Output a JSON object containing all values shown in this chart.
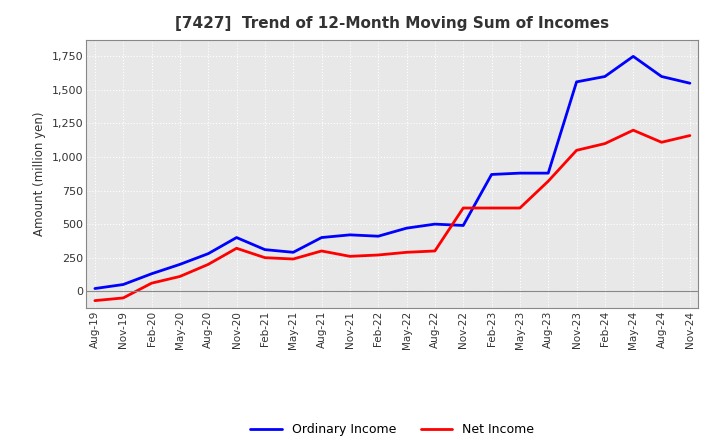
{
  "title": "[7427]  Trend of 12-Month Moving Sum of Incomes",
  "ylabel": "Amount (million yen)",
  "x_labels": [
    "Aug-19",
    "Nov-19",
    "Feb-20",
    "May-20",
    "Aug-20",
    "Nov-20",
    "Feb-21",
    "May-21",
    "Aug-21",
    "Nov-21",
    "Feb-22",
    "May-22",
    "Aug-22",
    "Nov-22",
    "Feb-23",
    "May-23",
    "Aug-23",
    "Nov-23",
    "Feb-24",
    "May-24",
    "Aug-24",
    "Nov-24"
  ],
  "ordinary_income": [
    20,
    50,
    130,
    200,
    280,
    400,
    310,
    290,
    400,
    420,
    410,
    470,
    500,
    490,
    870,
    880,
    880,
    1560,
    1600,
    1750,
    1600,
    1550
  ],
  "net_income": [
    -70,
    -50,
    60,
    110,
    200,
    320,
    250,
    240,
    300,
    260,
    270,
    290,
    300,
    620,
    620,
    620,
    820,
    1050,
    1100,
    1200,
    1110,
    1160
  ],
  "ordinary_color": "#0000ff",
  "net_color": "#ff0000",
  "background_color": "#ffffff",
  "plot_bg_color": "#e8e8e8",
  "grid_color": "#ffffff",
  "ylim": [
    -125,
    1875
  ],
  "yticks": [
    0,
    250,
    500,
    750,
    1000,
    1250,
    1500,
    1750
  ],
  "legend_ordinary": "Ordinary Income",
  "legend_net": "Net Income",
  "line_width": 2.0,
  "title_color": "#333333",
  "title_fontsize": 11
}
